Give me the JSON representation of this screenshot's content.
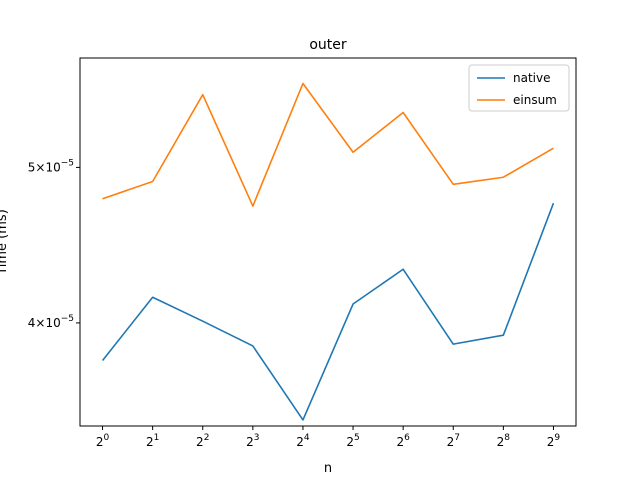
{
  "chart_data": {
    "type": "line",
    "title": "outer",
    "xlabel": "n",
    "ylabel": "Time (ms)",
    "x": [
      1,
      2,
      4,
      8,
      16,
      32,
      64,
      128,
      256,
      512
    ],
    "x_tick_labels": [
      {
        "base": "2",
        "exp": "0"
      },
      {
        "base": "2",
        "exp": "1"
      },
      {
        "base": "2",
        "exp": "2"
      },
      {
        "base": "2",
        "exp": "3"
      },
      {
        "base": "2",
        "exp": "4"
      },
      {
        "base": "2",
        "exp": "5"
      },
      {
        "base": "2",
        "exp": "6"
      },
      {
        "base": "2",
        "exp": "7"
      },
      {
        "base": "2",
        "exp": "8"
      },
      {
        "base": "2",
        "exp": "9"
      }
    ],
    "x_scale": "log2",
    "y_scale": "log",
    "ylim": [
      3.45e-05,
      5.85e-05
    ],
    "y_ticks": [
      {
        "value": 4e-05,
        "mant": "4",
        "exp": "−5"
      },
      {
        "value": 5e-05,
        "mant": "5",
        "exp": "−5"
      }
    ],
    "grid": false,
    "legend_position": "top-right",
    "series": [
      {
        "name": "native",
        "color": "#1f77b4",
        "values": [
          3.79e-05,
          4.15e-05,
          4.01e-05,
          3.87e-05,
          3.48e-05,
          4.11e-05,
          4.32e-05,
          3.88e-05,
          3.93e-05,
          4.75e-05
        ]
      },
      {
        "name": "einsum",
        "color": "#ff7f0e",
        "values": [
          4.78e-05,
          4.9e-05,
          5.55e-05,
          4.73e-05,
          5.64e-05,
          5.11e-05,
          5.41e-05,
          4.88e-05,
          4.93e-05,
          5.14e-05
        ]
      }
    ]
  }
}
